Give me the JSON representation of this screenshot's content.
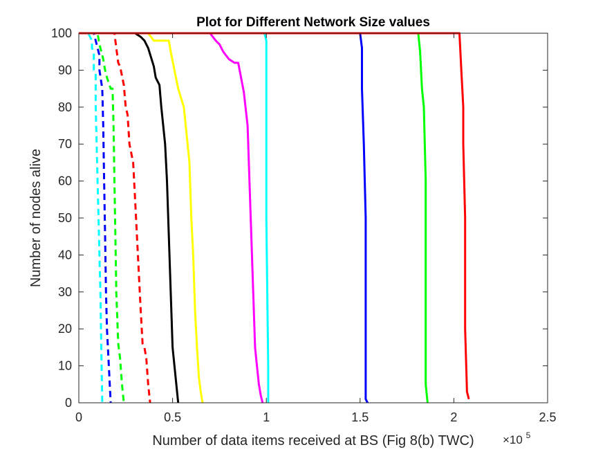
{
  "chart_data": {
    "type": "line",
    "title": "Plot for Different Network Size values",
    "xlabel": "Number of data items received at BS (Fig 8(b) TWC)",
    "ylabel": "Number of nodes alive",
    "x_exponent_base": "×10",
    "x_exponent_power": "5",
    "xlim": [
      0,
      2.5
    ],
    "ylim": [
      0,
      100
    ],
    "x_unit_scale": 100000,
    "xticks": [
      0,
      0.5,
      1,
      1.5,
      2,
      2.5
    ],
    "xtick_labels": [
      "0",
      "0.5",
      "1",
      "1.5",
      "2",
      "2.5"
    ],
    "yticks": [
      0,
      10,
      20,
      30,
      40,
      50,
      60,
      70,
      80,
      90,
      100
    ],
    "ytick_labels": [
      "0",
      "10",
      "20",
      "30",
      "40",
      "50",
      "60",
      "70",
      "80",
      "90",
      "100"
    ],
    "grid": false,
    "legend": "none",
    "series": [
      {
        "color": "#00ffff",
        "dash": true,
        "x": [
          0,
          0.05,
          0.06,
          0.07,
          0.07,
          0.08,
          0.08,
          0.09,
          0.09,
          0.095,
          0.1,
          0.105,
          0.11,
          0.115,
          0.12,
          0.125
        ],
        "y": [
          100,
          100,
          99,
          98,
          96,
          95,
          90,
          89,
          80,
          70,
          60,
          50,
          40,
          30,
          15,
          0
        ]
      },
      {
        "color": "#0000ff",
        "dash": true,
        "x": [
          0,
          0.08,
          0.09,
          0.1,
          0.11,
          0.11,
          0.125,
          0.13,
          0.135,
          0.14,
          0.145,
          0.15,
          0.16,
          0.17
        ],
        "y": [
          100,
          100,
          98,
          96,
          94,
          90,
          85,
          75,
          60,
          45,
          30,
          20,
          10,
          0
        ]
      },
      {
        "color": "#00ff00",
        "dash": true,
        "x": [
          0,
          0.1,
          0.11,
          0.13,
          0.14,
          0.15,
          0.17,
          0.18,
          0.185,
          0.19,
          0.195,
          0.2,
          0.21,
          0.22,
          0.23,
          0.24
        ],
        "y": [
          100,
          100,
          97,
          93,
          90,
          88,
          85,
          85,
          75,
          60,
          45,
          30,
          16,
          12,
          5,
          0
        ]
      },
      {
        "color": "#ff0000",
        "dash": true,
        "x": [
          0,
          0.19,
          0.2,
          0.21,
          0.22,
          0.24,
          0.25,
          0.26,
          0.27,
          0.29,
          0.3,
          0.31,
          0.32,
          0.33,
          0.34,
          0.35,
          0.36,
          0.37,
          0.38
        ],
        "y": [
          100,
          100,
          96,
          92,
          91,
          86,
          80,
          78,
          70,
          65,
          55,
          45,
          35,
          25,
          16,
          15,
          12,
          5,
          0
        ]
      },
      {
        "color": "#000000",
        "dash": false,
        "x": [
          0,
          0.3,
          0.33,
          0.35,
          0.37,
          0.4,
          0.41,
          0.43,
          0.44,
          0.46,
          0.47,
          0.48,
          0.49,
          0.5,
          0.51,
          0.52,
          0.53
        ],
        "y": [
          100,
          100,
          99,
          98,
          96,
          91,
          88,
          86,
          80,
          70,
          60,
          45,
          30,
          15,
          10,
          5,
          0
        ]
      },
      {
        "color": "#ffff00",
        "dash": false,
        "x": [
          0,
          0.37,
          0.4,
          0.48,
          0.49,
          0.53,
          0.56,
          0.58,
          0.59,
          0.6,
          0.61,
          0.62,
          0.63,
          0.64,
          0.65,
          0.66
        ],
        "y": [
          100,
          100,
          98,
          98,
          95,
          85,
          80,
          70,
          65,
          50,
          40,
          25,
          15,
          7,
          3,
          0
        ]
      },
      {
        "color": "#ff00ff",
        "dash": false,
        "x": [
          0,
          0.7,
          0.73,
          0.75,
          0.77,
          0.8,
          0.83,
          0.85,
          0.88,
          0.9,
          0.91,
          0.92,
          0.93,
          0.94,
          0.95,
          0.96,
          0.97,
          0.98
        ],
        "y": [
          100,
          100,
          98,
          97,
          95,
          93,
          92,
          92,
          84,
          75,
          60,
          45,
          30,
          15,
          10,
          5,
          2,
          0
        ]
      },
      {
        "color": "#00ffff",
        "dash": false,
        "x": [
          0,
          0.99,
          1.0,
          1.0,
          1.01,
          1.01
        ],
        "y": [
          100,
          100,
          98,
          50,
          10,
          0
        ]
      },
      {
        "color": "#0000ff",
        "dash": false,
        "x": [
          0,
          1.5,
          1.51,
          1.51,
          1.52,
          1.53,
          1.53,
          1.54
        ],
        "y": [
          100,
          100,
          96,
          85,
          70,
          50,
          1,
          0
        ]
      },
      {
        "color": "#00ff00",
        "dash": false,
        "x": [
          0,
          1.81,
          1.82,
          1.83,
          1.84,
          1.85,
          1.85,
          1.86
        ],
        "y": [
          100,
          100,
          95,
          85,
          80,
          60,
          5,
          0
        ]
      },
      {
        "color": "#ff0000",
        "dash": false,
        "x": [
          0,
          2.03,
          2.04,
          2.05,
          2.05,
          2.06,
          2.06,
          2.07,
          2.08
        ],
        "y": [
          100,
          100,
          90,
          80,
          70,
          50,
          20,
          3,
          1
        ]
      }
    ]
  }
}
